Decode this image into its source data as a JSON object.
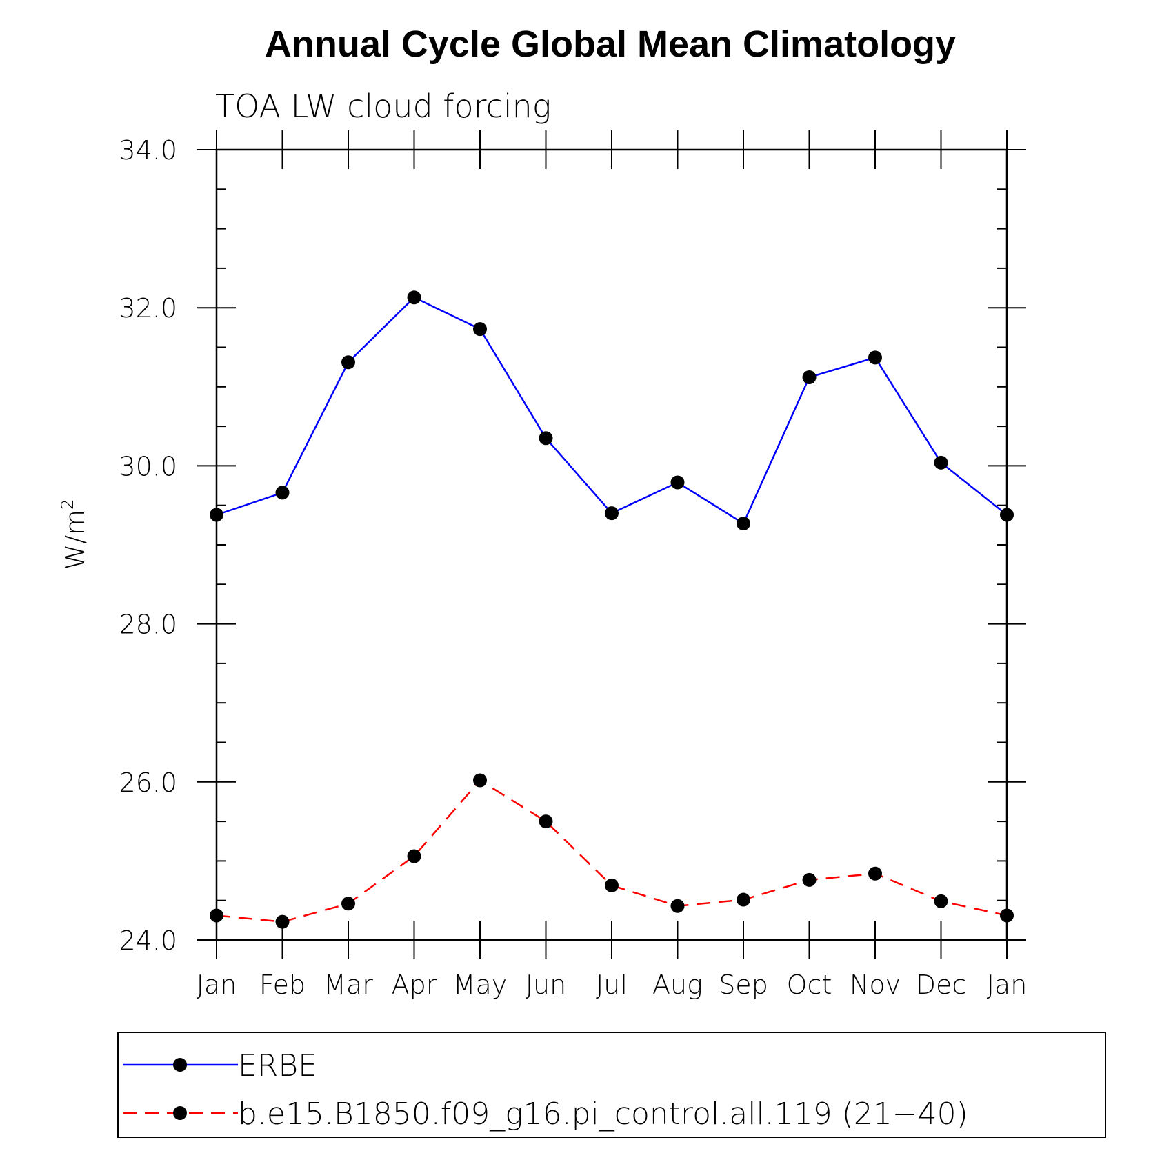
{
  "chart_data": {
    "type": "line",
    "title": "Annual Cycle Global Mean Climatology",
    "subtitle": "TOA LW cloud forcing",
    "ylabel": "W/m",
    "ylabel_sup": "2",
    "xlabel": "",
    "categories": [
      "Jan",
      "Feb",
      "Mar",
      "Apr",
      "May",
      "Jun",
      "Jul",
      "Aug",
      "Sep",
      "Oct",
      "Nov",
      "Dec",
      "Jan"
    ],
    "ylim": [
      24.0,
      34.0
    ],
    "yticks": [
      "24.0",
      "26.0",
      "28.0",
      "30.0",
      "32.0",
      "34.0"
    ],
    "ytick_values": [
      24,
      26,
      28,
      30,
      32,
      34
    ],
    "minor_step": 0.5,
    "grid": false,
    "legend_position": "bottom",
    "series": [
      {
        "name": "ERBE",
        "color": "#0000ff",
        "style": "solid",
        "marker": "filled-circle",
        "values": [
          29.38,
          29.66,
          31.31,
          32.13,
          31.73,
          30.35,
          29.4,
          29.79,
          29.27,
          31.12,
          31.37,
          30.04,
          29.38
        ]
      },
      {
        "name": "b.e15.B1850.f09_g16.pi_control.all.119 (21−40)",
        "color": "#ff0000",
        "style": "dashed",
        "marker": "filled-circle",
        "values": [
          24.31,
          24.23,
          24.46,
          25.06,
          26.02,
          25.5,
          24.69,
          24.43,
          24.51,
          24.76,
          24.84,
          24.49,
          24.31
        ]
      }
    ]
  }
}
